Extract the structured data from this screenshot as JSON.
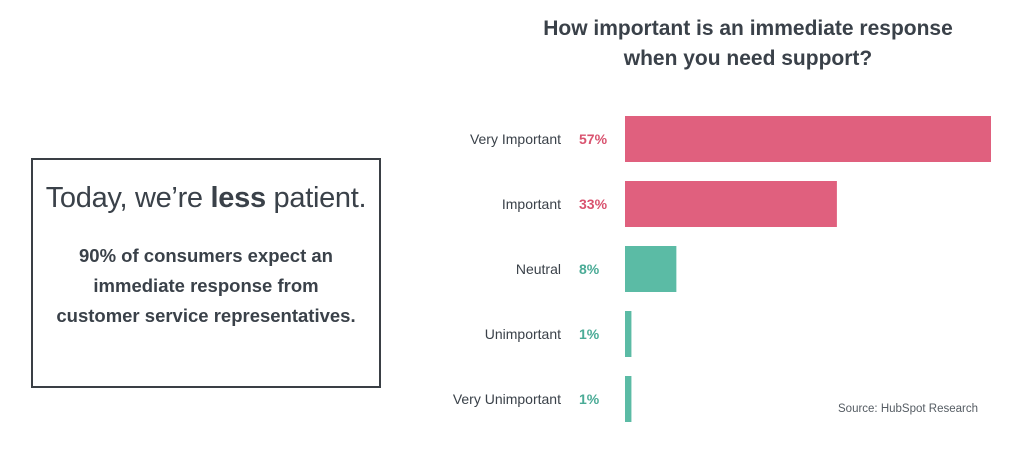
{
  "callout": {
    "headline_pre": "Today, we’re ",
    "headline_bold": "less",
    "headline_post": " patient.",
    "body_bold": "90%",
    "body_rest": " of consumers expect an immediate response from customer service representatives."
  },
  "source": "Source: HubSpot Research",
  "colors": {
    "important": "#e0607e",
    "neutral": "#5bbba5"
  },
  "chart_data": {
    "type": "bar",
    "orientation": "horizontal",
    "title_lines": [
      "How important is an immediate response",
      "when you need support?"
    ],
    "categories": [
      "Very Important",
      "Important",
      "Neutral",
      "Unimportant",
      "Very Unimportant"
    ],
    "values": [
      57,
      33,
      8,
      1,
      1
    ],
    "value_labels": [
      "57%",
      "33%",
      "8%",
      "1%",
      "1%"
    ],
    "bar_colors": [
      "#e0607e",
      "#e0607e",
      "#5bbba5",
      "#5bbba5",
      "#5bbba5"
    ],
    "label_colors": [
      "#d9536f",
      "#d9536f",
      "#4aab96",
      "#4aab96",
      "#4aab96"
    ],
    "xlim": [
      0,
      57
    ],
    "grid": false,
    "legend": "none"
  }
}
